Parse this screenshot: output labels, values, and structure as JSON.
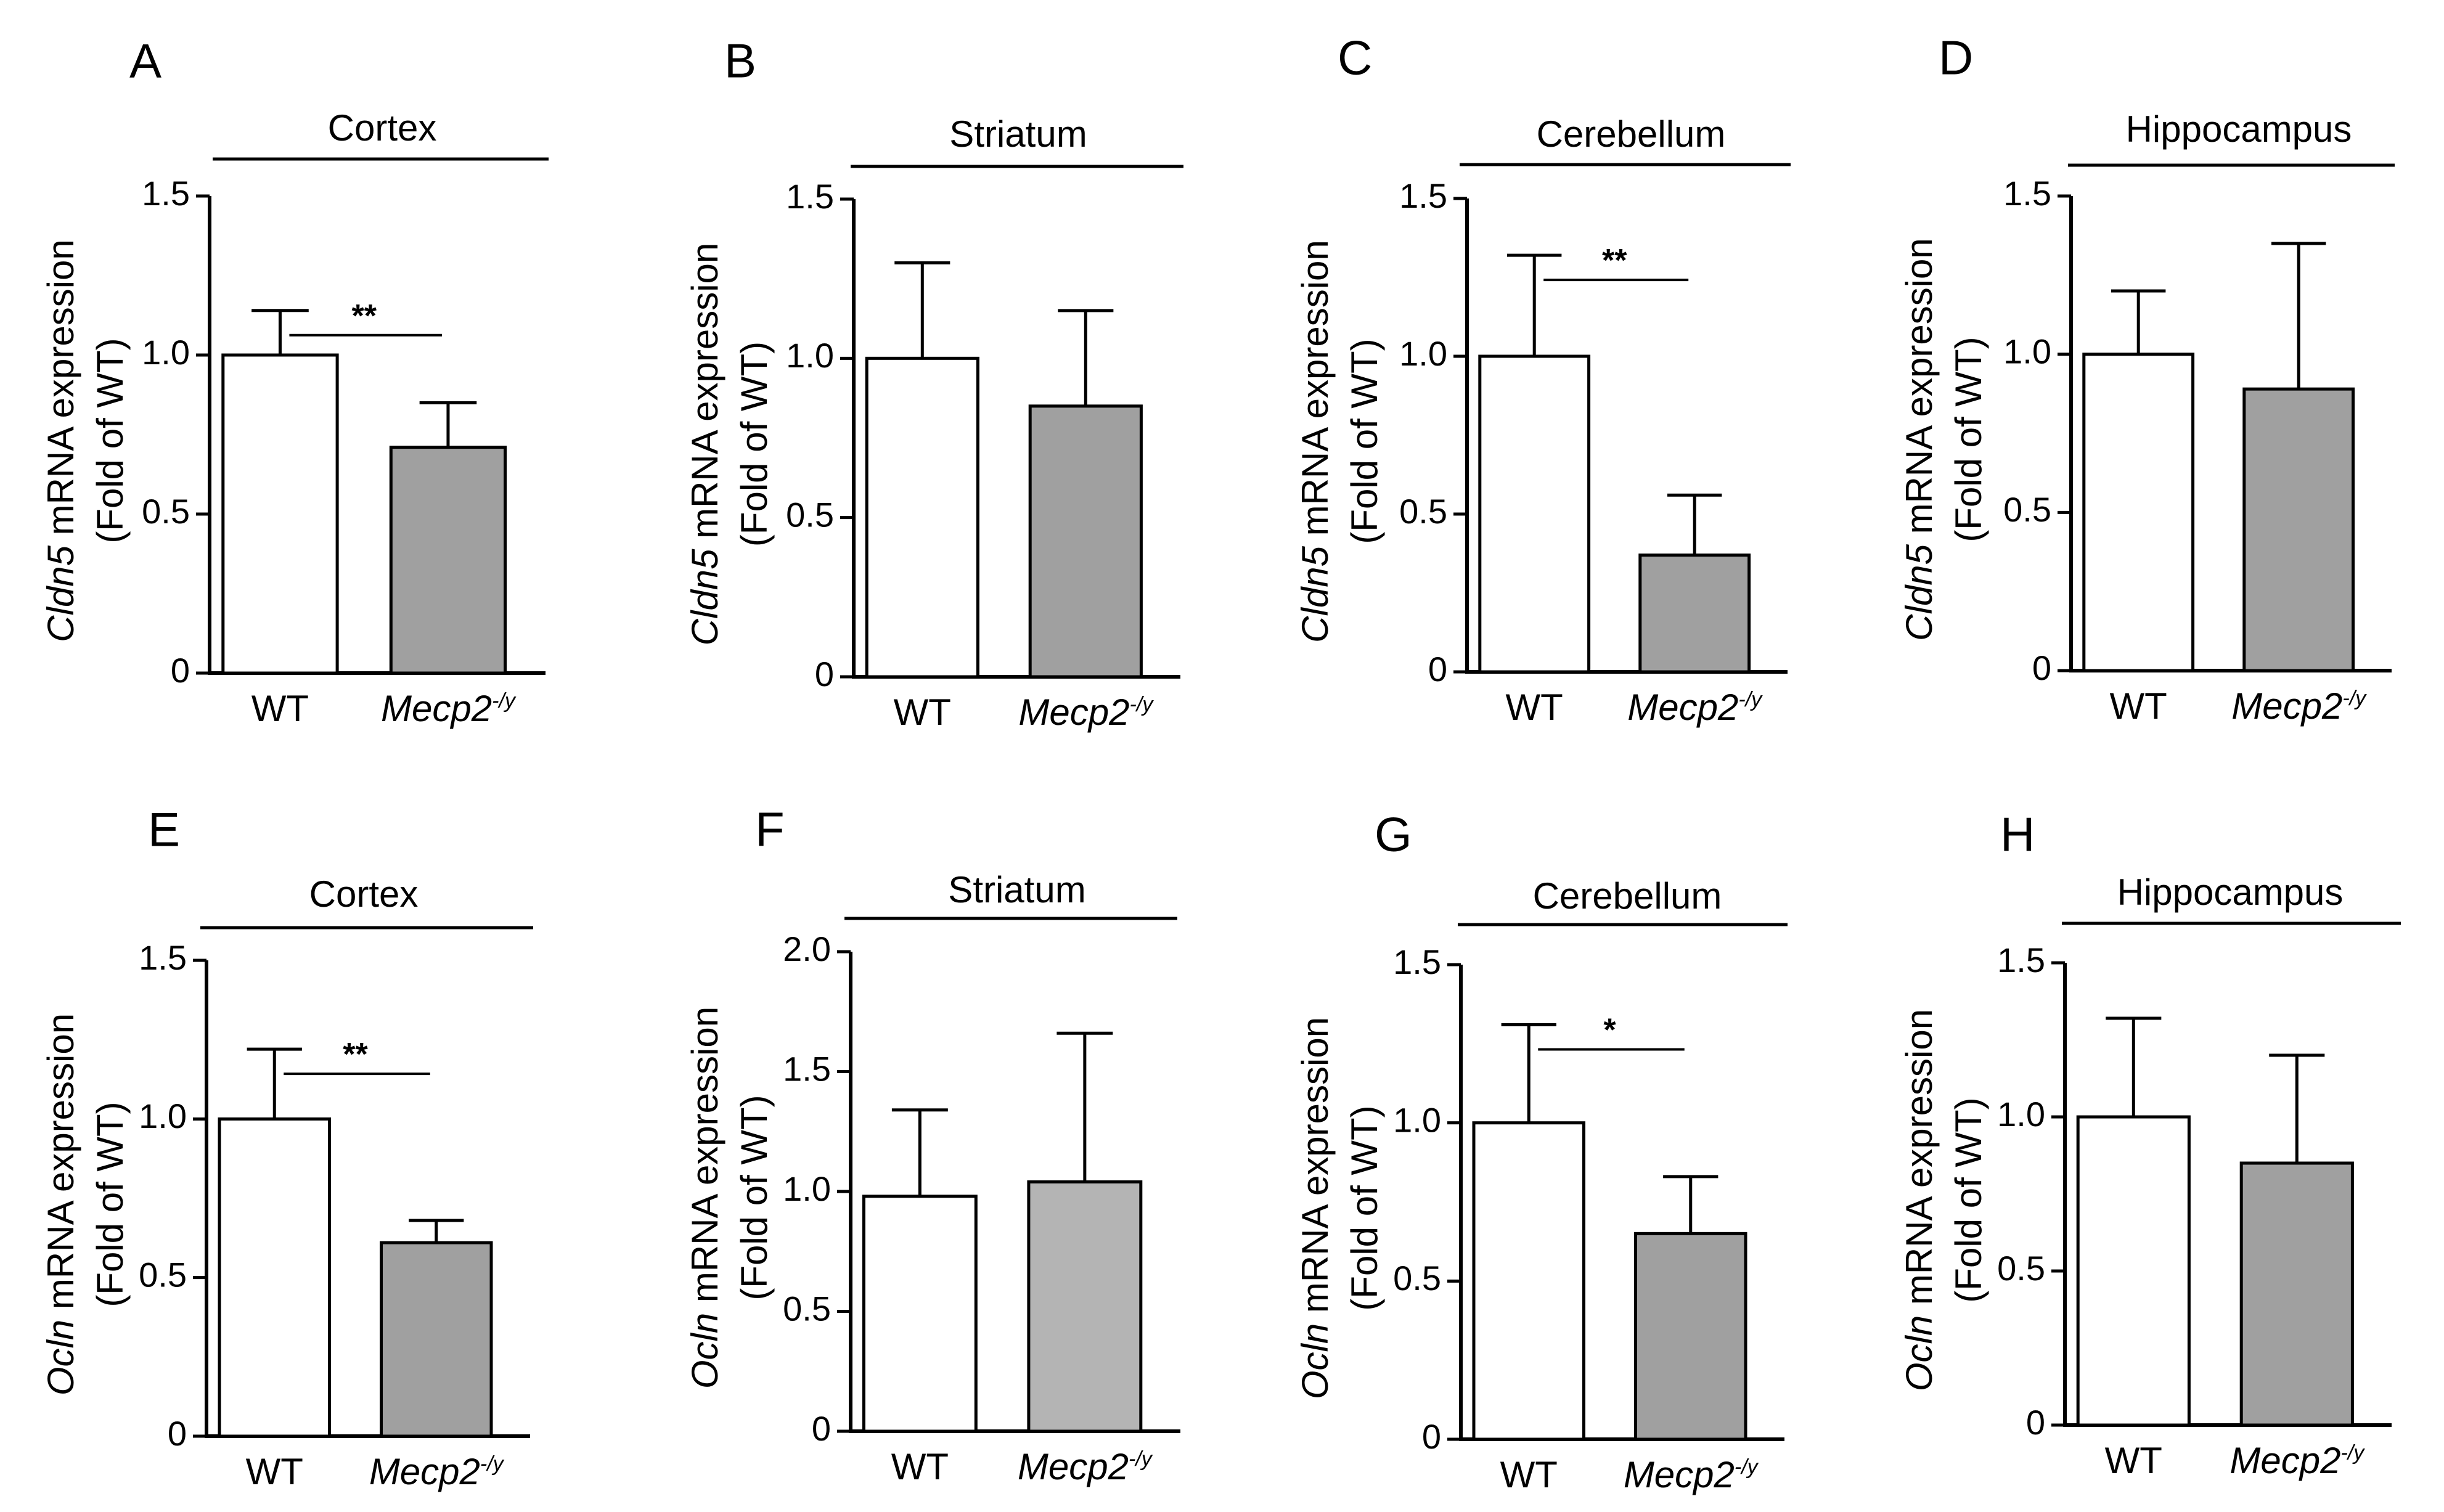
{
  "chart_data": [
    {
      "panel": "A",
      "type": "bar",
      "title": "Cortex",
      "gene": "Cldn5",
      "ylabel_main": "mRNA expression",
      "ylabel_sub": "(Fold of WT)",
      "ylim": [
        0,
        1.5
      ],
      "yticks": [
        "0",
        "0.5",
        "1.0",
        "1.5"
      ],
      "categories": [
        "WT",
        "Mecp2"
      ],
      "category_superscripts": [
        "",
        "-/y"
      ],
      "values": [
        1.0,
        0.71
      ],
      "errors": [
        0.14,
        0.14
      ],
      "bar_colors": [
        "#ffffff",
        "#a0a0a0"
      ],
      "significance": "**"
    },
    {
      "panel": "B",
      "type": "bar",
      "title": "Striatum",
      "gene": "Cldn5",
      "ylabel_main": "mRNA expression",
      "ylabel_sub": "(Fold of WT)",
      "ylim": [
        0,
        1.5
      ],
      "yticks": [
        "0",
        "0.5",
        "1.0",
        "1.5"
      ],
      "categories": [
        "WT",
        "Mecp2"
      ],
      "category_superscripts": [
        "",
        "-/y"
      ],
      "values": [
        1.0,
        0.85
      ],
      "errors": [
        0.3,
        0.3
      ],
      "bar_colors": [
        "#ffffff",
        "#a0a0a0"
      ],
      "significance": ""
    },
    {
      "panel": "C",
      "type": "bar",
      "title": "Cerebellum",
      "gene": "Cldn5",
      "ylabel_main": "mRNA expression",
      "ylabel_sub": "(Fold of WT)",
      "ylim": [
        0,
        1.5
      ],
      "yticks": [
        "0",
        "0.5",
        "1.0",
        "1.5"
      ],
      "categories": [
        "WT",
        "Mecp2"
      ],
      "category_superscripts": [
        "",
        "-/y"
      ],
      "values": [
        1.0,
        0.37
      ],
      "errors": [
        0.32,
        0.19
      ],
      "bar_colors": [
        "#ffffff",
        "#a0a0a0"
      ],
      "significance": "**"
    },
    {
      "panel": "D",
      "type": "bar",
      "title": "Hippocampus",
      "gene": "Cldn5",
      "ylabel_main": "mRNA expression",
      "ylabel_sub": "(Fold of WT)",
      "ylim": [
        0,
        1.5
      ],
      "yticks": [
        "0",
        "0.5",
        "1.0",
        "1.5"
      ],
      "categories": [
        "WT",
        "Mecp2"
      ],
      "category_superscripts": [
        "",
        "-/y"
      ],
      "values": [
        1.0,
        0.89
      ],
      "errors": [
        0.2,
        0.46
      ],
      "bar_colors": [
        "#ffffff",
        "#a0a0a0"
      ],
      "significance": ""
    },
    {
      "panel": "E",
      "type": "bar",
      "title": "Cortex",
      "gene": "Ocln",
      "ylabel_main": "mRNA expression",
      "ylabel_sub": "(Fold of WT)",
      "ylim": [
        0,
        1.5
      ],
      "yticks": [
        "0",
        "0.5",
        "1.0",
        "1.5"
      ],
      "categories": [
        "WT",
        "Mecp2"
      ],
      "category_superscripts": [
        "",
        "-/y"
      ],
      "values": [
        1.0,
        0.61
      ],
      "errors": [
        0.22,
        0.07
      ],
      "bar_colors": [
        "#ffffff",
        "#a0a0a0"
      ],
      "significance": "**"
    },
    {
      "panel": "F",
      "type": "bar",
      "title": "Striatum",
      "gene": "Ocln",
      "ylabel_main": "mRNA expression",
      "ylabel_sub": "(Fold of WT)",
      "ylim": [
        0,
        2.0
      ],
      "yticks": [
        "0",
        "0.5",
        "1.0",
        "1.5",
        "2.0"
      ],
      "categories": [
        "WT",
        "Mecp2"
      ],
      "category_superscripts": [
        "",
        "-/y"
      ],
      "values": [
        0.98,
        1.04
      ],
      "errors": [
        0.36,
        0.62
      ],
      "bar_colors": [
        "#ffffff",
        "#b4b4b4"
      ],
      "significance": ""
    },
    {
      "panel": "G",
      "type": "bar",
      "title": "Cerebellum",
      "gene": "Ocln",
      "ylabel_main": "mRNA expression",
      "ylabel_sub": "(Fold of WT)",
      "ylim": [
        0,
        1.5
      ],
      "yticks": [
        "0",
        "0.5",
        "1.0",
        "1.5"
      ],
      "categories": [
        "WT",
        "Mecp2"
      ],
      "category_superscripts": [
        "",
        "-/y"
      ],
      "values": [
        1.0,
        0.65
      ],
      "errors": [
        0.31,
        0.18
      ],
      "bar_colors": [
        "#ffffff",
        "#a0a0a0"
      ],
      "significance": "*"
    },
    {
      "panel": "H",
      "type": "bar",
      "title": "Hippocampus",
      "gene": "Ocln",
      "ylabel_main": "mRNA expression",
      "ylabel_sub": "(Fold of WT)",
      "ylim": [
        0,
        1.5
      ],
      "yticks": [
        "0",
        "0.5",
        "1.0",
        "1.5"
      ],
      "categories": [
        "WT",
        "Mecp2"
      ],
      "category_superscripts": [
        "",
        "-/y"
      ],
      "values": [
        1.0,
        0.85
      ],
      "errors": [
        0.32,
        0.35
      ],
      "bar_colors": [
        "#ffffff",
        "#a0a0a0"
      ],
      "significance": ""
    }
  ]
}
